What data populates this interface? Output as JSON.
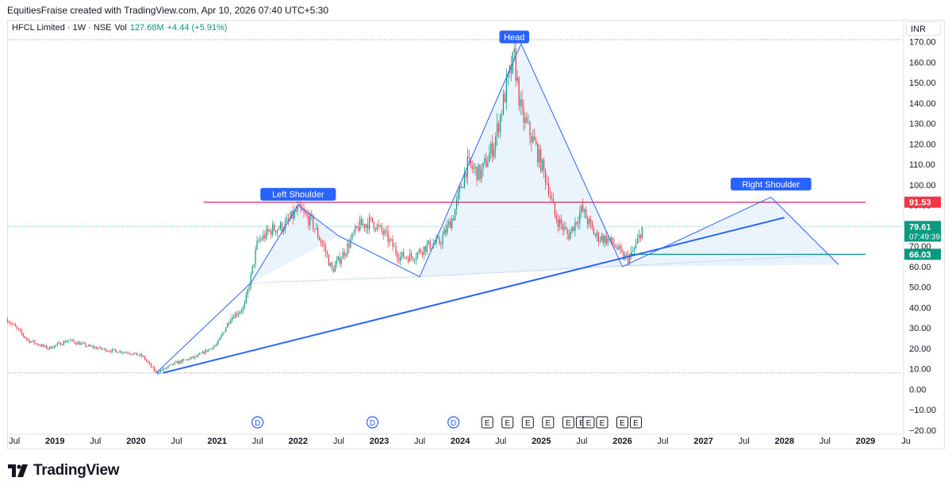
{
  "header": {
    "attribution": "EquitiesFraise created with TradingView.com, Apr 10, 2026 07:40 UTC+5:30"
  },
  "legend": {
    "symbol": "HFCL Limited · 1W · NSE",
    "vol_label": "Vol",
    "vol_value": "127.68M",
    "change": "+4.44 (+5.91%)"
  },
  "currency": "INR",
  "footer": {
    "brand": "TradingView",
    "logo_icon": "tradingview-logo-icon"
  },
  "colors": {
    "up": "#089981",
    "down": "#f23645",
    "line": "#2962ff",
    "resistance": "#e91e63",
    "support": "#089981",
    "fill": "#e3f0fb"
  },
  "chart_data": {
    "type": "candlestick",
    "y_ticks": [
      "170.00",
      "160.00",
      "150.00",
      "140.00",
      "130.00",
      "120.00",
      "110.00",
      "100.00",
      "90.00",
      "80.00",
      "70.00",
      "60.00",
      "50.00",
      "40.00",
      "30.00",
      "20.00",
      "10.00",
      "0.00",
      "−10.00",
      "−20.00"
    ],
    "ylim": [
      -22,
      178
    ],
    "x_ticks": [
      {
        "label": "Jul",
        "date": "2018-07"
      },
      {
        "label": "2019",
        "date": "2019-01"
      },
      {
        "label": "Jul",
        "date": "2019-07"
      },
      {
        "label": "2020",
        "date": "2020-01"
      },
      {
        "label": "Jul",
        "date": "2020-07"
      },
      {
        "label": "2021",
        "date": "2021-01"
      },
      {
        "label": "Jul",
        "date": "2021-07"
      },
      {
        "label": "2022",
        "date": "2022-01"
      },
      {
        "label": "Jul",
        "date": "2022-07"
      },
      {
        "label": "2023",
        "date": "2023-01"
      },
      {
        "label": "Jul",
        "date": "2023-07"
      },
      {
        "label": "2024",
        "date": "2024-01"
      },
      {
        "label": "Jul",
        "date": "2024-07"
      },
      {
        "label": "2025",
        "date": "2025-01"
      },
      {
        "label": "Jul",
        "date": "2025-07"
      },
      {
        "label": "2026",
        "date": "2026-01"
      },
      {
        "label": "Jul",
        "date": "2026-07"
      },
      {
        "label": "2027",
        "date": "2027-01"
      },
      {
        "label": "Jul",
        "date": "2027-07"
      },
      {
        "label": "2028",
        "date": "2028-01"
      },
      {
        "label": "Jul",
        "date": "2028-07"
      },
      {
        "label": "2029",
        "date": "2029-01"
      },
      {
        "label": "Ju",
        "date": "2029-07"
      }
    ],
    "price_path": [
      [
        "2018-06",
        34
      ],
      [
        "2018-09",
        24
      ],
      [
        "2018-12",
        20
      ],
      [
        "2019-03",
        24
      ],
      [
        "2019-06",
        21
      ],
      [
        "2019-09",
        19
      ],
      [
        "2019-12",
        18
      ],
      [
        "2020-02",
        16
      ],
      [
        "2020-04",
        8
      ],
      [
        "2020-07",
        13
      ],
      [
        "2020-10",
        16
      ],
      [
        "2021-01",
        22
      ],
      [
        "2021-03",
        35
      ],
      [
        "2021-05",
        40
      ],
      [
        "2021-06",
        55
      ],
      [
        "2021-07",
        72
      ],
      [
        "2021-09",
        78
      ],
      [
        "2021-11",
        80
      ],
      [
        "2022-01",
        88
      ],
      [
        "2022-03",
        82
      ],
      [
        "2022-05",
        68
      ],
      [
        "2022-06",
        58
      ],
      [
        "2022-08",
        68
      ],
      [
        "2022-10",
        80
      ],
      [
        "2022-12",
        82
      ],
      [
        "2023-02",
        75
      ],
      [
        "2023-04",
        65
      ],
      [
        "2023-06",
        65
      ],
      [
        "2023-08",
        70
      ],
      [
        "2023-10",
        72
      ],
      [
        "2023-12",
        85
      ],
      [
        "2024-02",
        110
      ],
      [
        "2024-04",
        105
      ],
      [
        "2024-06",
        120
      ],
      [
        "2024-08",
        150
      ],
      [
        "2024-09",
        162
      ],
      [
        "2024-10",
        135
      ],
      [
        "2024-12",
        120
      ],
      [
        "2025-02",
        100
      ],
      [
        "2025-03",
        85
      ],
      [
        "2025-05",
        75
      ],
      [
        "2025-07",
        88
      ],
      [
        "2025-09",
        75
      ],
      [
        "2025-11",
        73
      ],
      [
        "2025-12",
        70
      ],
      [
        "2026-01",
        65
      ],
      [
        "2026-02",
        64
      ],
      [
        "2026-03",
        70
      ],
      [
        "2026-04",
        79.61
      ]
    ],
    "price_labels": [
      {
        "value": 91.53,
        "text": "91.53",
        "color": "#f23645"
      },
      {
        "value": 79.61,
        "text": "79.61",
        "sub": "07:49:39",
        "color": "#089981"
      },
      {
        "value": 66.03,
        "text": "66.03",
        "color": "#089981"
      }
    ],
    "annotations": [
      {
        "text": "Head",
        "date": "2024-09",
        "value": 172
      },
      {
        "text": "Left Shoulder",
        "date": "2022-01",
        "value": 95
      },
      {
        "text": "Right Shoulder",
        "date": "2027-11",
        "value": 100
      }
    ],
    "lines": [
      {
        "role": "resistance",
        "from": [
          "2020-11",
          91.5
        ],
        "to": [
          "2029-01",
          91.5
        ]
      },
      {
        "role": "support",
        "from": [
          "2026-02",
          66
        ],
        "to": [
          "2029-01",
          66
        ]
      },
      {
        "role": "trend",
        "from": [
          "2020-05",
          8
        ],
        "to": [
          "2028-01",
          84
        ]
      },
      {
        "role": "pattern",
        "points": [
          [
            "2020-04",
            8
          ],
          [
            "2021-06",
            52
          ],
          [
            "2022-01",
            90
          ],
          [
            "2022-07",
            75
          ],
          [
            "2023-07",
            55
          ],
          [
            "2024-10",
            169
          ],
          [
            "2026-01",
            60
          ],
          [
            "2027-11",
            94
          ],
          [
            "2028-09",
            61
          ]
        ]
      }
    ],
    "events": [
      {
        "type": "dividend",
        "label": "D",
        "dates": [
          "2021-07",
          "2022-12",
          "2023-12"
        ]
      },
      {
        "type": "earnings",
        "label": "E",
        "dates": [
          "2024-05",
          "2024-08",
          "2024-11",
          "2025-02",
          "2025-05",
          "2025-07",
          "2025-08",
          "2025-10",
          "2026-01",
          "2026-03"
        ]
      }
    ]
  }
}
